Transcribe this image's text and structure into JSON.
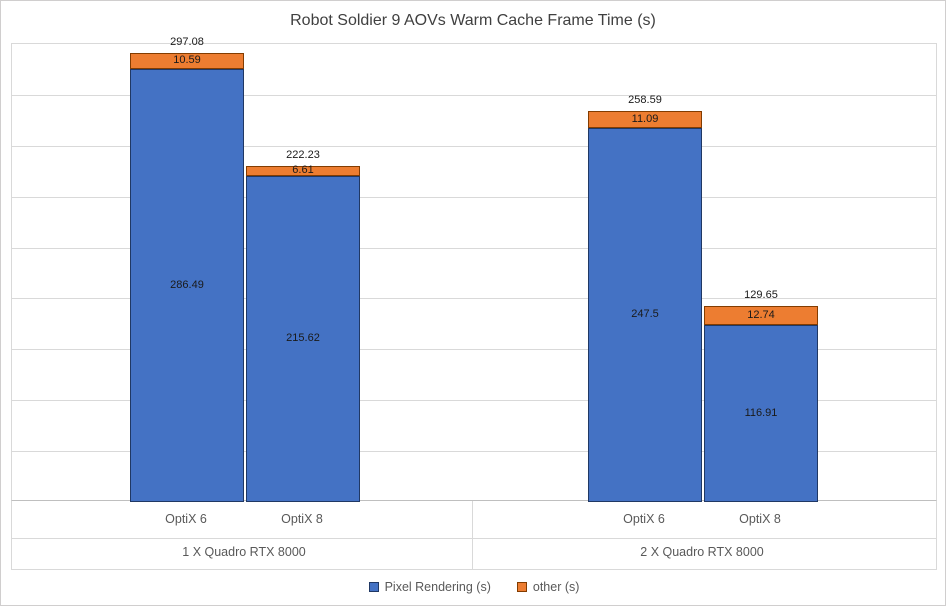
{
  "chart_data": {
    "type": "bar",
    "stacked": true,
    "title": "Robot Soldier 9 AOVs Warm Cache Frame Time (s)",
    "categories": [
      "OptiX 6",
      "OptiX 8",
      "OptiX 6",
      "OptiX 8"
    ],
    "groups": [
      {
        "label": "1 X Quadro RTX 8000",
        "category_indexes": [
          0,
          1
        ]
      },
      {
        "label": "2 X Quadro RTX 8000",
        "category_indexes": [
          2,
          3
        ]
      }
    ],
    "series": [
      {
        "name": "Pixel Rendering (s)",
        "color": "#4472C4",
        "border_color": "#203864",
        "values": [
          286.49,
          215.62,
          247.5,
          116.91
        ],
        "labels": [
          "286.49",
          "215.62",
          "247.5",
          "116.91"
        ]
      },
      {
        "name": "other (s)",
        "color": "#ED7D31",
        "border_color": "#833C00",
        "values": [
          10.59,
          6.61,
          11.09,
          12.74
        ],
        "labels": [
          "10.59",
          "6.61",
          "11.09",
          "12.74"
        ]
      }
    ],
    "totals": [
      "297.08",
      "222.23",
      "258.59",
      "129.65"
    ],
    "xlabel": "",
    "ylabel": "",
    "ylim": [
      0,
      303
    ],
    "grid": true,
    "legend_position": "bottom",
    "legend": [
      "Pixel Rendering (s)",
      "other (s)"
    ]
  },
  "colors": {
    "gridline": "#D9D9D9",
    "axis_line": "#BFBFBF",
    "text_muted": "#595959",
    "title_text": "#404040",
    "background": "#FFFFFF",
    "chart_border": "#D0CECE"
  }
}
